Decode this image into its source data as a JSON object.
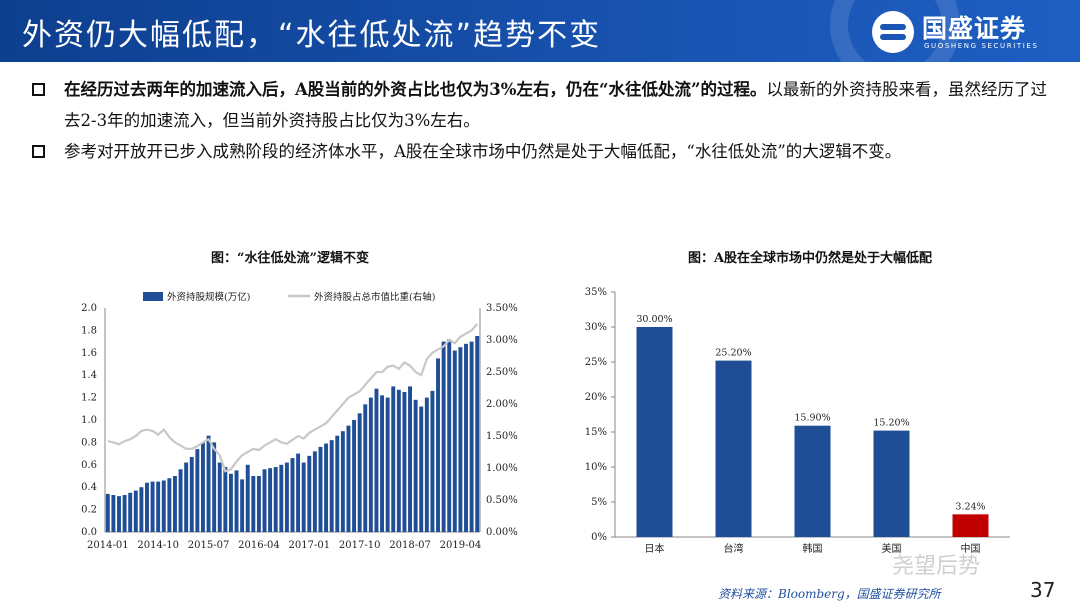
{
  "header": {
    "title": "外资仍大幅低配，“水往低处流”趋势不变",
    "logo_cn": "国盛证券",
    "logo_en": "GUOSHENG SECURITIES"
  },
  "bullets": [
    {
      "strong": "在经历过去两年的加速流入后，A股当前的外资占比也仅为3%左右，仍在“水往低处流”的过程。",
      "rest": "以最新的外资持股来看，虽然经历了过去2-3年的加速流入，但当前外资持股占比仅为3%左右。"
    },
    {
      "strong": "",
      "rest": "参考对开放开已步入成熟阶段的经济体水平，A股在全球市场中仍然是处于大幅低配，“水往低处流”的大逻辑不变。"
    }
  ],
  "chart_data": [
    {
      "type": "bar",
      "title": "图：“水往低处流”逻辑不变",
      "legend": [
        "外资持股规模(万亿)",
        "外资持股占总市值比重(右轴)"
      ],
      "x_ticks": [
        "2014-01",
        "2014-10",
        "2015-07",
        "2016-04",
        "2017-01",
        "2017-10",
        "2018-07",
        "2019-04"
      ],
      "y_left_ticks": [
        "0.0",
        "0.2",
        "0.4",
        "0.6",
        "0.8",
        "1.0",
        "1.2",
        "1.4",
        "1.6",
        "1.8",
        "2.0"
      ],
      "y_right_ticks": [
        "0.00%",
        "0.50%",
        "1.00%",
        "1.50%",
        "2.00%",
        "2.50%",
        "3.00%",
        "3.50%"
      ],
      "ylim_left": [
        0,
        2.0
      ],
      "ylim_right": [
        0,
        3.5
      ],
      "bar_color": "#1f4e96",
      "line_color": "#c8c8c8",
      "series": [
        {
          "name": "外资持股规模(万亿)",
          "values": [
            0.34,
            0.33,
            0.32,
            0.33,
            0.35,
            0.37,
            0.4,
            0.44,
            0.45,
            0.45,
            0.46,
            0.48,
            0.5,
            0.56,
            0.62,
            0.67,
            0.74,
            0.8,
            0.86,
            0.8,
            0.62,
            0.58,
            0.52,
            0.55,
            0.47,
            0.6,
            0.5,
            0.5,
            0.56,
            0.57,
            0.58,
            0.6,
            0.62,
            0.66,
            0.7,
            0.62,
            0.68,
            0.72,
            0.76,
            0.79,
            0.82,
            0.86,
            0.9,
            0.95,
            1.0,
            1.06,
            1.14,
            1.2,
            1.28,
            1.22,
            1.2,
            1.3,
            1.27,
            1.25,
            1.3,
            1.18,
            1.12,
            1.2,
            1.26,
            1.55,
            1.7,
            1.72,
            1.62,
            1.65,
            1.68,
            1.7,
            1.75
          ]
        },
        {
          "name": "外资持股占总市值比重(右轴)",
          "values": [
            1.42,
            1.4,
            1.37,
            1.42,
            1.45,
            1.5,
            1.58,
            1.6,
            1.58,
            1.52,
            1.6,
            1.48,
            1.4,
            1.35,
            1.3,
            1.3,
            1.34,
            1.4,
            1.45,
            1.3,
            1.2,
            0.95,
            0.98,
            1.1,
            1.2,
            1.25,
            1.3,
            1.28,
            1.35,
            1.4,
            1.45,
            1.4,
            1.38,
            1.44,
            1.5,
            1.46,
            1.55,
            1.6,
            1.65,
            1.7,
            1.8,
            1.9,
            2.0,
            2.1,
            2.15,
            2.2,
            2.3,
            2.4,
            2.5,
            2.5,
            2.58,
            2.6,
            2.55,
            2.65,
            2.6,
            2.5,
            2.45,
            2.7,
            2.8,
            2.85,
            2.9,
            3.0,
            2.95,
            3.05,
            3.1,
            3.15,
            3.25
          ]
        }
      ]
    },
    {
      "type": "bar",
      "title": "图：A股在全球市场中仍然是处于大幅低配",
      "categories": [
        "日本",
        "台湾",
        "韩国",
        "美国",
        "中国"
      ],
      "values": [
        30.0,
        25.2,
        15.9,
        15.2,
        3.24
      ],
      "data_labels": [
        "30.00%",
        "25.20%",
        "15.90%",
        "15.20%",
        "3.24%"
      ],
      "bar_colors": [
        "#1f4e96",
        "#1f4e96",
        "#1f4e96",
        "#1f4e96",
        "#c00000"
      ],
      "y_ticks": [
        "0%",
        "5%",
        "10%",
        "15%",
        "20%",
        "25%",
        "30%",
        "35%"
      ],
      "ylim": [
        0,
        35
      ]
    }
  ],
  "footer": {
    "source": "资料来源：Bloomberg，国盛证券研究所",
    "page": "37",
    "watermark": "尧望后势"
  }
}
